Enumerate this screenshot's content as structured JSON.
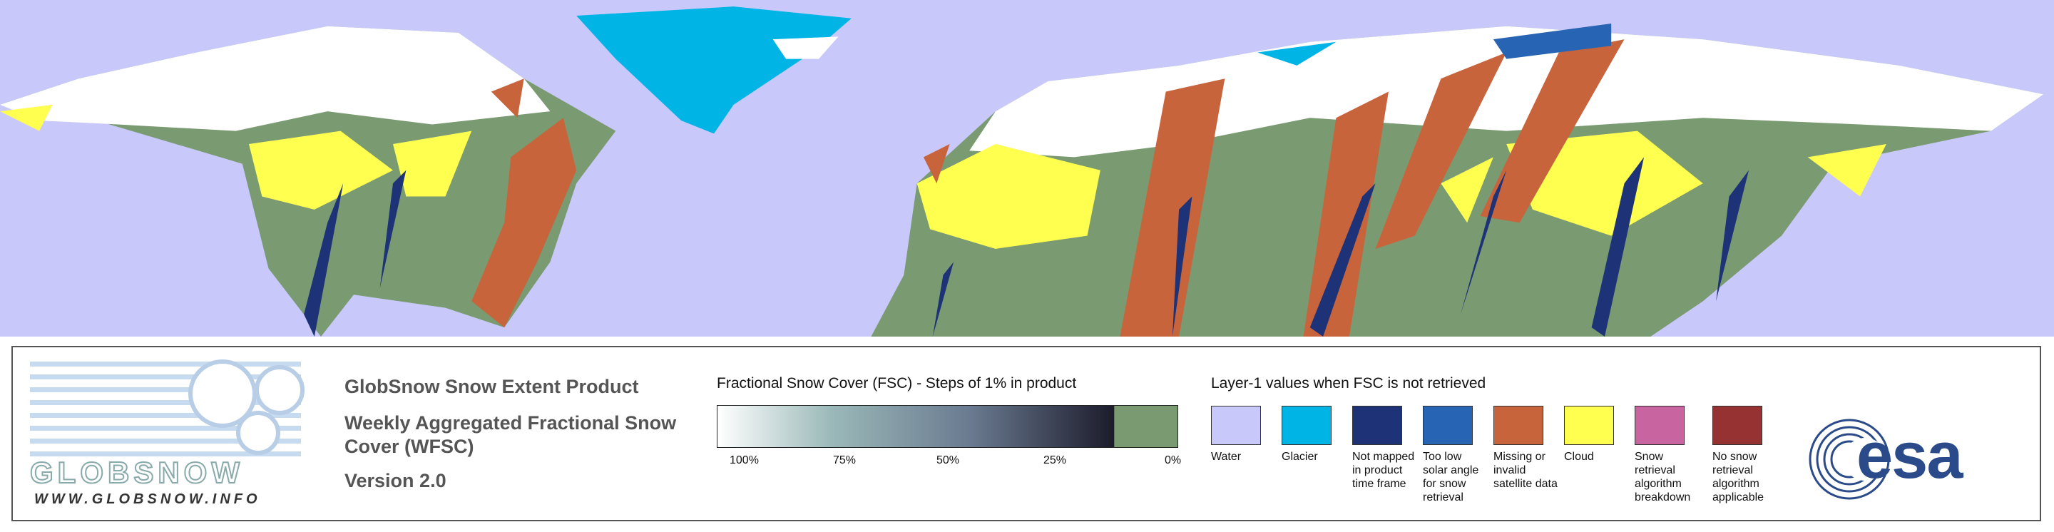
{
  "logo": {
    "name": "GLOBSNOW",
    "url": "WWW.GLOBSNOW.INFO"
  },
  "header": {
    "title": "GlobSnow Snow Extent Product",
    "subtitle": "Weekly Aggregated Fractional Snow Cover (WFSC)",
    "version": "Version 2.0"
  },
  "fsc_legend": {
    "title": "Fractional Snow Cover (FSC) - Steps of 1% in product",
    "labels": [
      "100%",
      "75%",
      "50%",
      "25%",
      "0%"
    ]
  },
  "layer_legend": {
    "title": "Layer-1 values when FSC is not retrieved",
    "items": [
      {
        "label": "Water",
        "color": "#c8c8fa"
      },
      {
        "label": "Glacier",
        "color": "#00b4e6"
      },
      {
        "label": "Not mapped in product time frame",
        "color": "#1e3278"
      },
      {
        "label": "Too low solar angle for snow retrieval",
        "color": "#2864b4"
      },
      {
        "label": "Missing or invalid satellite data",
        "color": "#c8643c"
      },
      {
        "label": "Cloud",
        "color": "#ffff50"
      },
      {
        "label": "Snow retrieval algorithm breakdown",
        "color": "#c864a0"
      },
      {
        "label": "No snow retrieval algorithm applicable",
        "color": "#963232"
      }
    ]
  },
  "agency_logo": "esa"
}
